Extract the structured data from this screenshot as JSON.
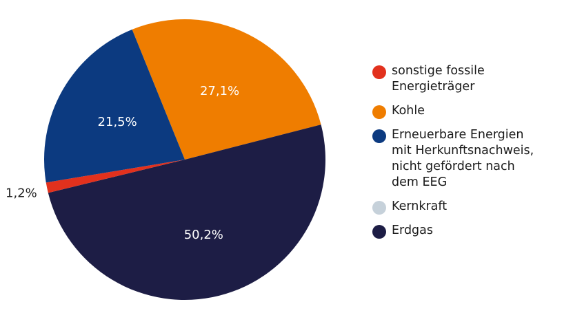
{
  "chart_data": {
    "type": "pie",
    "title": "",
    "slices": [
      {
        "label": "sonstige fossile\nEnergieträger",
        "value": 1.2,
        "value_label": "1,2%",
        "color": "#e2311d",
        "icon": "red-circle"
      },
      {
        "label": "Kohle",
        "value": 27.1,
        "value_label": "27,1%",
        "color": "#ef7d00",
        "icon": "orange-circle"
      },
      {
        "label": "Erneuerbare Energien\nmit Herkunftsnachweis,\nnicht gefördert nach\ndem EEG",
        "value": 21.5,
        "value_label": "21,5%",
        "color": "#0c3a80",
        "icon": "blue-circle"
      },
      {
        "label": "Kernkraft",
        "value": 0,
        "value_label": "",
        "color": "#c6d1da",
        "icon": "gray-circle"
      },
      {
        "label": "Erdgas",
        "value": 50.2,
        "value_label": "50,2%",
        "color": "#1d1d45",
        "icon": "navy-circle"
      }
    ],
    "legend_position": "right"
  }
}
